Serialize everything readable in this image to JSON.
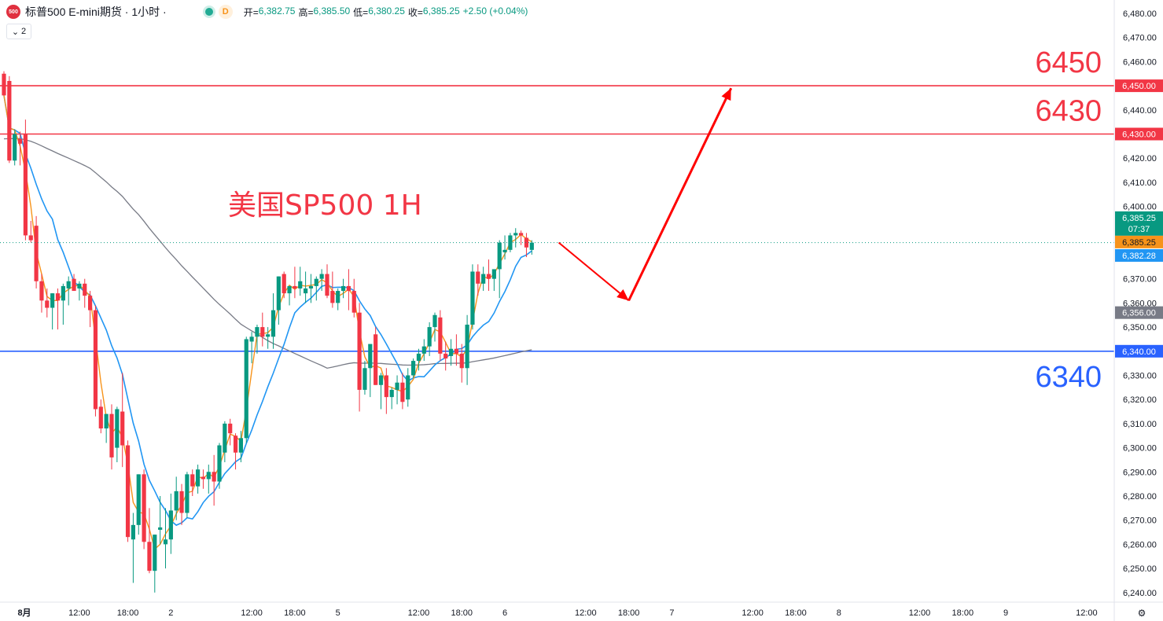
{
  "header": {
    "logo_text": "500",
    "symbol": "标普500 E-mini期货 · 1小时 ·",
    "status_badge": "D",
    "open_label": "开=",
    "open": "6,382.75",
    "high_label": "高=",
    "high": "6,385.50",
    "low_label": "低=",
    "low": "6,380.25",
    "close_label": "收=",
    "close": "6,385.25",
    "change": "+2.50 (+0.04%)",
    "collapse_count": "2"
  },
  "colors": {
    "up": "#089981",
    "down": "#f23645",
    "ma_fast": "#f7931a",
    "ma_mid": "#2196f3",
    "ma_slow": "#787b86",
    "support": "#2962ff",
    "resistance": "#f23645",
    "arrow": "#ff0000"
  },
  "chart_data": {
    "type": "candlestick",
    "title": "美国SP500 1H",
    "y_axis": {
      "min": 6240,
      "max": 6480,
      "step": 10,
      "side": "right",
      "precision": 2
    },
    "x_tick_labels": [
      "8月",
      "12:00",
      "18:00",
      "2",
      "12:00",
      "18:00",
      "5",
      "12:00",
      "18:00",
      "6",
      "12:00",
      "18:00",
      "7",
      "12:00",
      "18:00",
      "8",
      "12:00",
      "18:00",
      "9",
      "12:00"
    ],
    "x_tick_index": [
      0,
      14,
      23,
      31,
      46,
      54,
      62,
      77,
      85,
      93,
      108,
      116,
      124,
      139,
      147,
      155,
      170,
      178,
      186,
      201
    ],
    "candles": [
      [
        6455,
        6456,
        6446,
        6446
      ],
      [
        6452,
        6454,
        6418,
        6419
      ],
      [
        6419,
        6432,
        6417,
        6430
      ],
      [
        6428,
        6431,
        6417,
        6426
      ],
      [
        6430,
        6436,
        6386,
        6388
      ],
      [
        6388,
        6394,
        6385,
        6386
      ],
      [
        6392,
        6396,
        6366,
        6369
      ],
      [
        6369,
        6372,
        6356,
        6361
      ],
      [
        6361,
        6366,
        6354,
        6358
      ],
      [
        6358,
        6364,
        6349,
        6364
      ],
      [
        6364,
        6366,
        6349,
        6361
      ],
      [
        6361,
        6368,
        6351,
        6367
      ],
      [
        6366,
        6371,
        6359,
        6369
      ],
      [
        6370,
        6372,
        6366,
        6365
      ],
      [
        6366,
        6369,
        6361,
        6368
      ],
      [
        6368,
        6370,
        6358,
        6363
      ],
      [
        6363,
        6365,
        6350,
        6357
      ],
      [
        6357,
        6359,
        6313,
        6316
      ],
      [
        6317,
        6320,
        6306,
        6308
      ],
      [
        6308,
        6314,
        6302,
        6314
      ],
      [
        6314,
        6318,
        6291,
        6296
      ],
      [
        6300,
        6317,
        6294,
        6316
      ],
      [
        6315,
        6331,
        6292,
        6301
      ],
      [
        6301,
        6303,
        6261,
        6263
      ],
      [
        6262,
        6273,
        6244,
        6268
      ],
      [
        6268,
        6289,
        6264,
        6289
      ],
      [
        6289,
        6291,
        6258,
        6261
      ],
      [
        6261,
        6275,
        6248,
        6249
      ],
      [
        6249,
        6264,
        6240,
        6264
      ],
      [
        6266,
        6280,
        6260,
        6267
      ],
      [
        6260,
        6275,
        6250,
        6262
      ],
      [
        6262,
        6281,
        6256,
        6274
      ],
      [
        6274,
        6288,
        6270,
        6282
      ],
      [
        6282,
        6285,
        6268,
        6273
      ],
      [
        6273,
        6290,
        6271,
        6289
      ],
      [
        6289,
        6291,
        6280,
        6284
      ],
      [
        6284,
        6293,
        6281,
        6291
      ],
      [
        6288,
        6291,
        6283,
        6287
      ],
      [
        6287,
        6293,
        6281,
        6290
      ],
      [
        6290,
        6297,
        6276,
        6286
      ],
      [
        6286,
        6302,
        6283,
        6301
      ],
      [
        6298,
        6311,
        6294,
        6310
      ],
      [
        6310,
        6312,
        6301,
        6306
      ],
      [
        6305,
        6306,
        6291,
        6298
      ],
      [
        6298,
        6307,
        6294,
        6304
      ],
      [
        6304,
        6346,
        6302,
        6345
      ],
      [
        6344,
        6348,
        6335,
        6346
      ],
      [
        6346,
        6351,
        6339,
        6350
      ],
      [
        6350,
        6356,
        6342,
        6346
      ],
      [
        6346,
        6350,
        6341,
        6347
      ],
      [
        6346,
        6364,
        6341,
        6357
      ],
      [
        6357,
        6371,
        6351,
        6371
      ],
      [
        6372,
        6373,
        6362,
        6364
      ],
      [
        6364,
        6367,
        6359,
        6367
      ],
      [
        6367,
        6375,
        6362,
        6366
      ],
      [
        6366,
        6375,
        6363,
        6369
      ],
      [
        6364,
        6373,
        6360,
        6366
      ],
      [
        6366,
        6372,
        6360,
        6367
      ],
      [
        6367,
        6371,
        6361,
        6370
      ],
      [
        6370,
        6374,
        6365,
        6372
      ],
      [
        6372,
        6376,
        6362,
        6363
      ],
      [
        6365,
        6373,
        6358,
        6360
      ],
      [
        6360,
        6366,
        6357,
        6365
      ],
      [
        6365,
        6370,
        6362,
        6367
      ],
      [
        6367,
        6374,
        6357,
        6365
      ],
      [
        6365,
        6370,
        6354,
        6356
      ],
      [
        6356,
        6360,
        6315,
        6324
      ],
      [
        6324,
        6336,
        6322,
        6333
      ],
      [
        6333,
        6342,
        6321,
        6343
      ],
      [
        6347,
        6350,
        6326,
        6326
      ],
      [
        6326,
        6331,
        6316,
        6330
      ],
      [
        6330,
        6333,
        6314,
        6321
      ],
      [
        6321,
        6325,
        6316,
        6324
      ],
      [
        6324,
        6330,
        6318,
        6327
      ],
      [
        6327,
        6331,
        6316,
        6319
      ],
      [
        6320,
        6333,
        6317,
        6330
      ],
      [
        6330,
        6337,
        6329,
        6336
      ],
      [
        6336,
        6341,
        6332,
        6339
      ],
      [
        6339,
        6345,
        6336,
        6342
      ],
      [
        6342,
        6352,
        6338,
        6350
      ],
      [
        6350,
        6356,
        6344,
        6355
      ],
      [
        6354,
        6357,
        6336,
        6339
      ],
      [
        6339,
        6344,
        6332,
        6337
      ],
      [
        6338,
        6345,
        6334,
        6341
      ],
      [
        6341,
        6347,
        6334,
        6339
      ],
      [
        6339,
        6343,
        6327,
        6333
      ],
      [
        6333,
        6355,
        6326,
        6351
      ],
      [
        6351,
        6376,
        6349,
        6373
      ],
      [
        6373,
        6376,
        6363,
        6368
      ],
      [
        6368,
        6375,
        6365,
        6372
      ],
      [
        6372,
        6378,
        6365,
        6370
      ],
      [
        6370,
        6373,
        6365,
        6374
      ],
      [
        6374,
        6386,
        6362,
        6385
      ],
      [
        6381,
        6388,
        6378,
        6382
      ],
      [
        6382,
        6389,
        6381,
        6388
      ],
      [
        6388,
        6391,
        6383,
        6389
      ],
      [
        6389,
        6390,
        6384,
        6388
      ],
      [
        6387,
        6389,
        6379,
        6383
      ],
      [
        6382,
        6386,
        6380,
        6385
      ]
    ],
    "ma_fast_last": 6385.25,
    "ma_mid_last": 6382.28,
    "ma_slow_last": 6356.0,
    "current_price_label": "6,385.25",
    "countdown": "07:37",
    "price_tags": {
      "fast": "6,385.25",
      "mid": "6,382.28",
      "slow": "6,356.00"
    },
    "horizontal_lines": [
      {
        "value": 6450,
        "color": "#f23645",
        "label": "6450",
        "tag": "6,450.00"
      },
      {
        "value": 6430,
        "color": "#f23645",
        "label": "6430",
        "tag": "6,430.00"
      },
      {
        "value": 6340,
        "color": "#2962ff",
        "label": "6340",
        "tag": "6,340.00"
      }
    ],
    "projection": {
      "color": "#ff0000",
      "points": [
        [
          103,
          6385
        ],
        [
          116,
          6361
        ],
        [
          135,
          6449
        ]
      ]
    }
  }
}
